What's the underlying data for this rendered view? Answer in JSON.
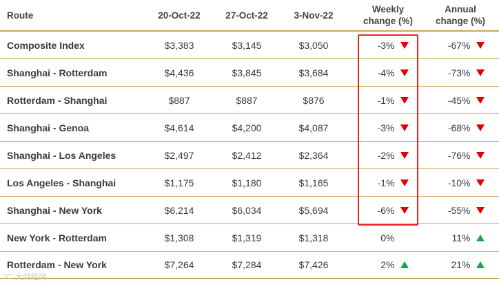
{
  "colors": {
    "border": "#c9a45c",
    "highlight_box": "#e8262a",
    "down_arrow": "#e00000",
    "up_arrow": "#1fa34a"
  },
  "headers": {
    "route": "Route",
    "d1": "20-Oct-22",
    "d2": "27-Oct-22",
    "d3": "3-Nov-22",
    "weekly_l1": "Weekly",
    "weekly_l2": "change (%)",
    "annual_l1": "Annual",
    "annual_l2": "change (%)"
  },
  "rows": [
    {
      "route": "Composite Index",
      "d1": "$3,383",
      "d2": "$3,145",
      "d3": "$3,050",
      "weekly": "-3%",
      "weekly_dir": "down",
      "annual": "-67%",
      "annual_dir": "down"
    },
    {
      "route": "Shanghai - Rotterdam",
      "d1": "$4,436",
      "d2": "$3,845",
      "d3": "$3,684",
      "weekly": "-4%",
      "weekly_dir": "down",
      "annual": "-73%",
      "annual_dir": "down"
    },
    {
      "route": "Rotterdam - Shanghai",
      "d1": "$887",
      "d2": "$887",
      "d3": "$876",
      "weekly": "-1%",
      "weekly_dir": "down",
      "annual": "-45%",
      "annual_dir": "down"
    },
    {
      "route": "Shanghai - Genoa",
      "d1": "$4,614",
      "d2": "$4,200",
      "d3": "$4,087",
      "weekly": "-3%",
      "weekly_dir": "down",
      "annual": "-68%",
      "annual_dir": "down"
    },
    {
      "route": "Shanghai - Los Angeles",
      "d1": "$2,497",
      "d2": "$2,412",
      "d3": "$2,364",
      "weekly": "-2%",
      "weekly_dir": "down",
      "annual": "-76%",
      "annual_dir": "down"
    },
    {
      "route": "Los Angeles - Shanghai",
      "d1": "$1,175",
      "d2": "$1,180",
      "d3": "$1,165",
      "weekly": "-1%",
      "weekly_dir": "down",
      "annual": "-10%",
      "annual_dir": "down"
    },
    {
      "route": "Shanghai - New York",
      "d1": "$6,214",
      "d2": "$6,034",
      "d3": "$5,694",
      "weekly": "-6%",
      "weekly_dir": "down",
      "annual": "-55%",
      "annual_dir": "down"
    },
    {
      "route": "New York - Rotterdam",
      "d1": "$1,308",
      "d2": "$1,319",
      "d3": "$1,318",
      "weekly": "0%",
      "weekly_dir": "none",
      "annual": "11%",
      "annual_dir": "up"
    },
    {
      "route": "Rotterdam - New York",
      "d1": "$7,264",
      "d2": "$7,284",
      "d3": "$7,426",
      "weekly": "2%",
      "weekly_dir": "up",
      "annual": "21%",
      "annual_dir": "up"
    }
  ],
  "watermark": "JC 大财经网"
}
